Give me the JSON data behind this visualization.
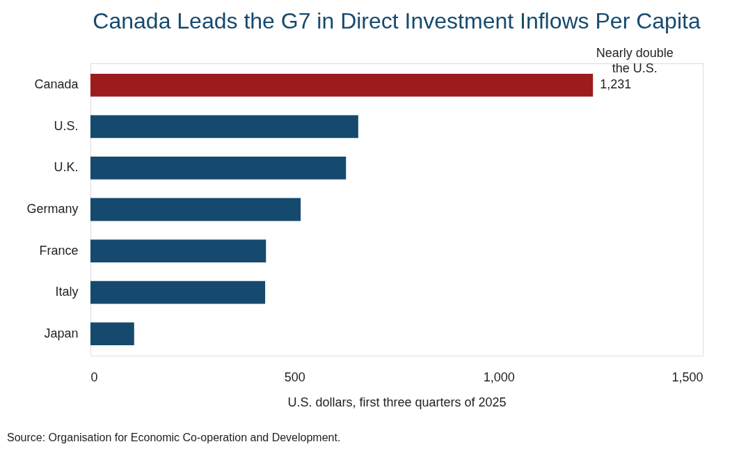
{
  "chart_data": {
    "type": "bar",
    "orientation": "horizontal",
    "title": "Canada Leads the G7 in Direct Investment Inflows Per Capita",
    "xlabel": "U.S. dollars, first three quarters of 2025",
    "categories": [
      "Canada",
      "U.S.",
      "U.K.",
      "Germany",
      "France",
      "Italy",
      "Japan"
    ],
    "values": [
      1231,
      656,
      626,
      515,
      430,
      428,
      107
    ],
    "colors": [
      "#9b1b1f",
      "#154a6e",
      "#154a6e",
      "#154a6e",
      "#154a6e",
      "#154a6e",
      "#154a6e"
    ],
    "value_labels": [
      "1,231",
      null,
      null,
      null,
      null,
      null,
      null
    ],
    "xlim": [
      0,
      1500
    ],
    "xticks": [
      0,
      {
        "value": 500,
        "label": "500"
      },
      {
        "value": 1000,
        "label": "1,000"
      },
      {
        "value": 1500,
        "label": "1,500"
      }
    ],
    "grid": false,
    "annotations": [
      {
        "text": "Nearly double\nthe U.S.",
        "x": 1231,
        "y": "Canada"
      },
      "Source: Organisation for Economic Co-operation and Development."
    ]
  }
}
